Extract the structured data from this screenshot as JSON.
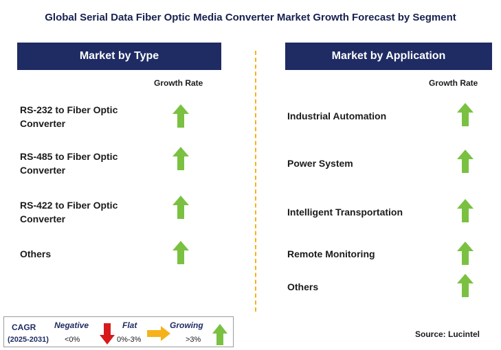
{
  "title": "Global Serial Data Fiber Optic Media Converter Market Growth Forecast by Segment",
  "left_panel": {
    "header": "Market by Type",
    "column_label": "Growth Rate",
    "rows": [
      {
        "label_line1": "RS-232 to Fiber Optic",
        "label_line2": "Converter",
        "trend": "growing"
      },
      {
        "label_line1": "RS-485 to Fiber Optic",
        "label_line2": "Converter",
        "trend": "growing"
      },
      {
        "label_line1": "RS-422 to Fiber Optic",
        "label_line2": "Converter",
        "trend": "growing"
      },
      {
        "label_line1": "Others",
        "label_line2": "",
        "trend": "growing"
      }
    ]
  },
  "right_panel": {
    "header": "Market by Application",
    "column_label": "Growth Rate",
    "rows": [
      {
        "label": "Industrial Automation",
        "trend": "growing"
      },
      {
        "label": "Power System",
        "trend": "growing"
      },
      {
        "label": "Intelligent Transportation",
        "trend": "growing"
      },
      {
        "label": "Remote Monitoring",
        "trend": "growing"
      },
      {
        "label": "Others",
        "trend": "growing"
      }
    ]
  },
  "legend": {
    "cagr_label": "CAGR",
    "period": "(2025-2031)",
    "negative_label": "Negative",
    "negative_range": "<0%",
    "flat_label": "Flat",
    "flat_range": "0%-3%",
    "growing_label": "Growing",
    "growing_range": ">3%"
  },
  "source": "Source: Lucintel",
  "colors": {
    "header_bg": "#1f2b63",
    "up_arrow": "#7ac142",
    "down_arrow": "#d7191c",
    "flat_arrow": "#f5b21a",
    "divider": "#f5b21a"
  },
  "icons": {
    "up": "green-up-arrow-icon",
    "down": "red-down-arrow-icon",
    "flat": "yellow-right-arrow-icon"
  }
}
